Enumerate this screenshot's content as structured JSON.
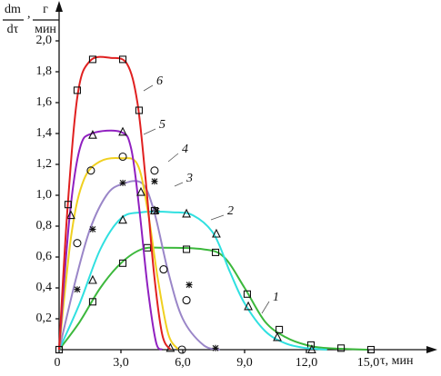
{
  "chart_data": {
    "type": "line",
    "ylabel": {
      "numerator": "dm",
      "denominator": "dτ",
      "unit_top": "г",
      "unit_bottom": "мин"
    },
    "xlabel": "τ, мин",
    "xlim": [
      0,
      18
    ],
    "ylim": [
      0,
      2.2
    ],
    "xticks": [
      {
        "value": 0,
        "label": "0"
      },
      {
        "value": 3,
        "label": "3,0"
      },
      {
        "value": 6,
        "label": "6,0"
      },
      {
        "value": 9,
        "label": "9,0"
      },
      {
        "value": 12,
        "label": "12,0"
      },
      {
        "value": 15,
        "label": "15,0"
      }
    ],
    "yticks": [
      {
        "value": 0.2,
        "label": "0,2"
      },
      {
        "value": 0.4,
        "label": "0,4"
      },
      {
        "value": 0.6,
        "label": "0,6"
      },
      {
        "value": 0.8,
        "label": "0,8"
      },
      {
        "value": 1.0,
        "label": "1,0"
      },
      {
        "value": 1.2,
        "label": "1,2"
      },
      {
        "value": 1.4,
        "label": "1,4"
      },
      {
        "value": 1.6,
        "label": "1,6"
      },
      {
        "value": 1.8,
        "label": "1,8"
      },
      {
        "value": 2.0,
        "label": "2,0"
      }
    ],
    "grid": false,
    "series": [
      {
        "name": "1",
        "color": "#3cb83c",
        "marker": "square",
        "x": [
          0,
          1,
          2,
          3,
          4,
          5,
          7,
          8,
          9,
          10,
          11,
          12,
          13,
          15
        ],
        "values": [
          0,
          0.18,
          0.4,
          0.56,
          0.65,
          0.66,
          0.65,
          0.6,
          0.4,
          0.18,
          0.08,
          0.03,
          0.01,
          0
        ],
        "markers": {
          "x": [
            0,
            1.63,
            3.09,
            4.28,
            6.18,
            7.59,
            9.13,
            10.68,
            12.22,
            13.68,
            15.13
          ],
          "values": [
            0,
            0.31,
            0.56,
            0.66,
            0.65,
            0.63,
            0.36,
            0.13,
            0.03,
            0.01,
            0
          ]
        }
      },
      {
        "name": "2",
        "color": "#30e0e0",
        "marker": "triangle",
        "x": [
          0,
          1,
          2,
          3,
          4,
          5.5,
          6.5,
          7.5,
          8.3,
          9,
          10,
          11,
          12,
          13
        ],
        "values": [
          0,
          0.3,
          0.65,
          0.85,
          0.89,
          0.89,
          0.87,
          0.75,
          0.5,
          0.3,
          0.12,
          0.04,
          0.01,
          0
        ],
        "markers": {
          "x": [
            1.63,
            3.09,
            4.63,
            6.18,
            7.63,
            9.18,
            10.59,
            12.26
          ],
          "values": [
            0.45,
            0.84,
            0.9,
            0.88,
            0.75,
            0.28,
            0.08,
            0
          ]
        }
      },
      {
        "name": "3",
        "color": "#9a86c8",
        "marker": "star",
        "x": [
          0,
          0.8,
          1.5,
          2.3,
          3,
          4,
          4.6,
          5.3,
          6,
          7,
          7.8
        ],
        "values": [
          0,
          0.45,
          0.78,
          1.0,
          1.07,
          1.08,
          0.9,
          0.5,
          0.2,
          0.03,
          0
        ],
        "markers": {
          "x": [
            0.88,
            1.63,
            3.09,
            4.63,
            4.72,
            6.31,
            7.59
          ],
          "values": [
            0.39,
            0.78,
            1.08,
            1.09,
            0.9,
            0.42,
            0.01
          ]
        }
      },
      {
        "name": "4",
        "color": "#f0d020",
        "marker": "circle",
        "x": [
          0,
          0.6,
          1.2,
          2,
          3,
          3.8,
          4.3,
          4.8,
          5.3,
          5.8
        ],
        "values": [
          0,
          0.75,
          1.1,
          1.22,
          1.24,
          1.2,
          0.9,
          0.45,
          0.1,
          0
        ],
        "markers": {
          "x": [
            0.88,
            1.54,
            3.09,
            4.63,
            5.07,
            6.18,
            5.96
          ],
          "values": [
            0.69,
            1.16,
            1.25,
            1.16,
            0.52,
            0.32,
            0
          ]
        }
      },
      {
        "name": "5",
        "color": "#9020c0",
        "marker": "triangle",
        "x": [
          0,
          0.5,
          1,
          1.6,
          3,
          3.5,
          3.9,
          4.3,
          4.7,
          5
        ],
        "values": [
          0,
          0.85,
          1.3,
          1.4,
          1.41,
          1.3,
          0.9,
          0.4,
          0.05,
          0
        ],
        "markers": {
          "x": [
            0.57,
            1.63,
            3.09,
            3.97,
            5.4
          ],
          "values": [
            0.87,
            1.39,
            1.41,
            1.02,
            0.01
          ]
        }
      },
      {
        "name": "6",
        "color": "#e02020",
        "marker": "square",
        "x": [
          0,
          0.4,
          0.9,
          1.5,
          2.5,
          3.3,
          3.8,
          4.2,
          4.6,
          5.0,
          5.4
        ],
        "values": [
          0,
          0.9,
          1.65,
          1.87,
          1.89,
          1.85,
          1.6,
          1.1,
          0.5,
          0.1,
          0
        ],
        "markers": {
          "x": [
            0,
            0.44,
            0.88,
            1.63,
            3.09,
            3.88,
            4.63
          ],
          "values": [
            0,
            0.94,
            1.68,
            1.88,
            1.88,
            1.55,
            0.9
          ]
        }
      }
    ]
  }
}
